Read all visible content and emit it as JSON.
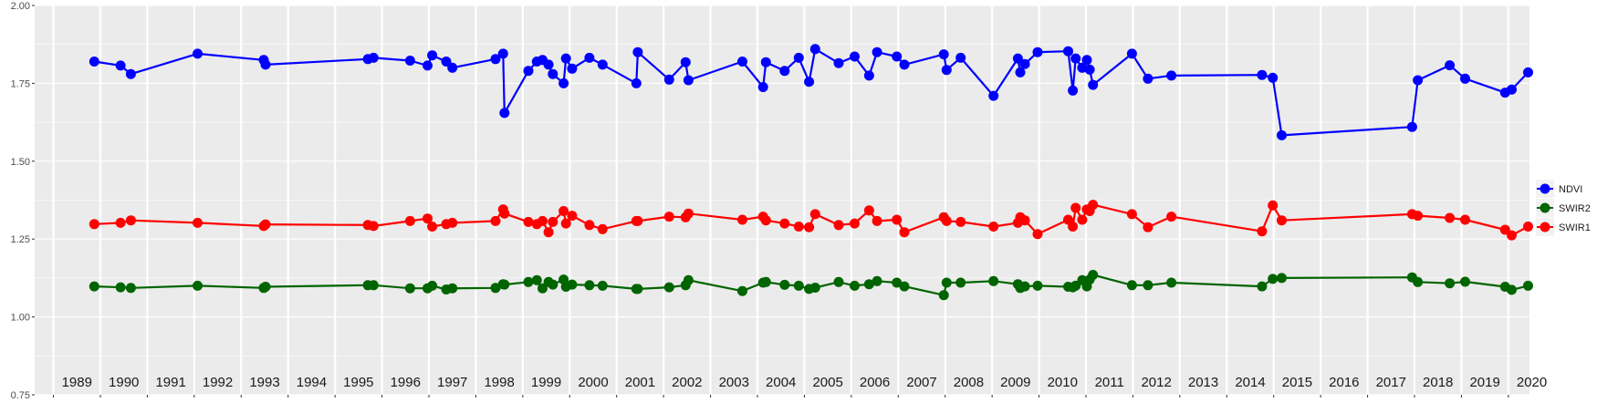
{
  "chart_data": {
    "type": "line",
    "title": "",
    "xlabel": "",
    "ylabel": "",
    "xlim": [
      1988.6,
      2020.45
    ],
    "ylim": [
      0.75,
      2.0
    ],
    "y_ticks": [
      "0.75",
      "1.00",
      "1.25",
      "1.50",
      "1.75",
      "2.00"
    ],
    "y_tick_values": [
      0.75,
      1.0,
      1.25,
      1.5,
      1.75,
      2.0
    ],
    "x_tick_values": [
      1989,
      1990,
      1991,
      1992,
      1993,
      1994,
      1995,
      1996,
      1997,
      1998,
      1999,
      2000,
      2001,
      2002,
      2003,
      2004,
      2005,
      2006,
      2007,
      2008,
      2009,
      2010,
      2011,
      2012,
      2013,
      2014,
      2015,
      2016,
      2017,
      2018,
      2019,
      2020
    ],
    "year_labels": [
      "1989",
      "1990",
      "1991",
      "1992",
      "1993",
      "1994",
      "1995",
      "1996",
      "1997",
      "1998",
      "1999",
      "2000",
      "2001",
      "2002",
      "2003",
      "2004",
      "2005",
      "2006",
      "2007",
      "2008",
      "2009",
      "2010",
      "2011",
      "2012",
      "2013",
      "2014",
      "2015",
      "2016",
      "2017",
      "2018",
      "2019",
      "2020"
    ],
    "x": [
      1989.87,
      1990.43,
      1990.65,
      1992.07,
      1993.48,
      1993.52,
      1995.7,
      1995.82,
      1996.6,
      1996.97,
      1997.07,
      1997.37,
      1997.5,
      1998.42,
      1998.58,
      1998.61,
      1999.12,
      1999.3,
      1999.42,
      1999.55,
      1999.64,
      1999.87,
      1999.92,
      2000.05,
      2000.42,
      2000.7,
      2001.42,
      2001.45,
      2002.12,
      2002.47,
      2002.53,
      2003.68,
      2004.12,
      2004.18,
      2004.58,
      2004.88,
      2005.1,
      2005.23,
      2005.73,
      2006.07,
      2006.38,
      2006.55,
      2006.97,
      2007.13,
      2007.97,
      2008.03,
      2008.33,
      2009.03,
      2009.55,
      2009.6,
      2009.7,
      2009.97,
      2010.62,
      2010.72,
      2010.78,
      2010.92,
      2011.02,
      2011.08,
      2011.15,
      2011.98,
      2012.32,
      2012.82,
      2014.75,
      2014.98,
      2015.17,
      2017.95,
      2018.07,
      2018.75,
      2019.08,
      2019.93,
      2020.07,
      2020.42
    ],
    "series": [
      {
        "name": "NDVI",
        "color": "#0000ff",
        "values": [
          1.82,
          1.807,
          1.78,
          1.845,
          1.825,
          1.81,
          1.828,
          1.832,
          1.823,
          1.807,
          1.84,
          1.82,
          1.8,
          1.828,
          1.845,
          1.655,
          1.79,
          1.82,
          1.825,
          1.81,
          1.78,
          1.75,
          1.83,
          1.797,
          1.832,
          1.81,
          1.75,
          1.85,
          1.762,
          1.818,
          1.76,
          1.82,
          1.738,
          1.818,
          1.79,
          1.832,
          1.755,
          1.86,
          1.815,
          1.836,
          1.775,
          1.85,
          1.836,
          1.81,
          1.843,
          1.793,
          1.832,
          1.71,
          1.83,
          1.785,
          1.812,
          1.85,
          1.853,
          1.727,
          1.83,
          1.8,
          1.825,
          1.794,
          1.745,
          1.845,
          1.765,
          1.775,
          1.777,
          1.768,
          1.583,
          1.61,
          1.76,
          1.808,
          1.765,
          1.72,
          1.73,
          1.785
        ]
      },
      {
        "name": "SWIR2",
        "color": "#006400",
        "values": [
          1.098,
          1.095,
          1.093,
          1.1,
          1.093,
          1.097,
          1.102,
          1.102,
          1.092,
          1.092,
          1.1,
          1.088,
          1.092,
          1.093,
          1.105,
          1.104,
          1.112,
          1.118,
          1.092,
          1.112,
          1.104,
          1.12,
          1.097,
          1.104,
          1.102,
          1.1,
          1.09,
          1.09,
          1.095,
          1.102,
          1.118,
          1.083,
          1.11,
          1.112,
          1.103,
          1.1,
          1.09,
          1.094,
          1.112,
          1.1,
          1.105,
          1.115,
          1.11,
          1.098,
          1.07,
          1.11,
          1.11,
          1.115,
          1.105,
          1.093,
          1.098,
          1.1,
          1.097,
          1.095,
          1.1,
          1.118,
          1.098,
          1.12,
          1.135,
          1.102,
          1.102,
          1.11,
          1.098,
          1.122,
          1.125,
          1.127,
          1.112,
          1.108,
          1.113,
          1.097,
          1.087,
          1.1
        ]
      },
      {
        "name": "SWIR1",
        "color": "#ff0000",
        "values": [
          1.298,
          1.302,
          1.31,
          1.302,
          1.292,
          1.297,
          1.295,
          1.292,
          1.308,
          1.316,
          1.29,
          1.298,
          1.302,
          1.308,
          1.345,
          1.332,
          1.305,
          1.298,
          1.308,
          1.272,
          1.305,
          1.34,
          1.3,
          1.325,
          1.295,
          1.282,
          1.308,
          1.308,
          1.322,
          1.32,
          1.332,
          1.312,
          1.322,
          1.31,
          1.3,
          1.29,
          1.288,
          1.33,
          1.295,
          1.3,
          1.342,
          1.308,
          1.312,
          1.272,
          1.32,
          1.308,
          1.305,
          1.29,
          1.302,
          1.32,
          1.31,
          1.266,
          1.312,
          1.29,
          1.35,
          1.312,
          1.345,
          1.34,
          1.36,
          1.33,
          1.288,
          1.322,
          1.275,
          1.358,
          1.31,
          1.33,
          1.325,
          1.318,
          1.312,
          1.28,
          1.262,
          1.29
        ]
      }
    ],
    "legend": {
      "position": "right",
      "entries": [
        "NDVI",
        "SWIR2",
        "SWIR1"
      ]
    },
    "colors": {
      "panel_background": "#ebebeb",
      "grid": "#ffffff",
      "axis_text": "#4d4d4d",
      "year_text": "#1a1a1a"
    },
    "grid": true
  }
}
